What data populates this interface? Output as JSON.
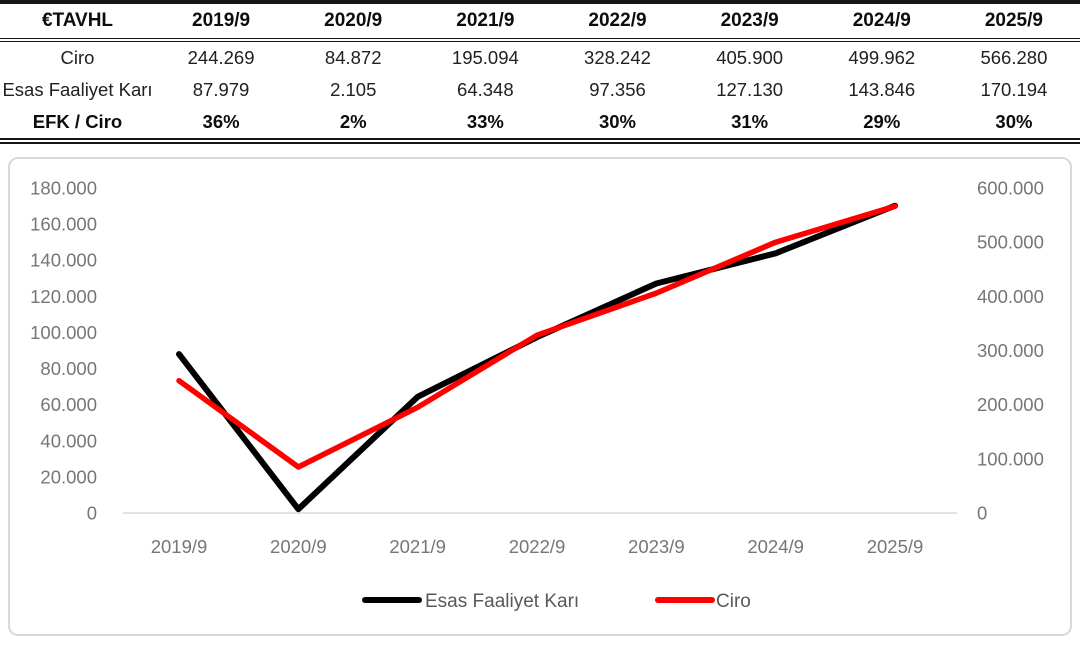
{
  "table": {
    "header": [
      "€TAVHL",
      "2019/9",
      "2020/9",
      "2021/9",
      "2022/9",
      "2023/9",
      "2024/9",
      "2025/9"
    ],
    "rows": [
      {
        "label": "Ciro",
        "values": [
          "244.269",
          "84.872",
          "195.094",
          "328.242",
          "405.900",
          "499.962",
          "566.280"
        ],
        "bold": false
      },
      {
        "label": "Esas Faaliyet Karı",
        "values": [
          "87.979",
          "2.105",
          "64.348",
          "97.356",
          "127.130",
          "143.846",
          "170.194"
        ],
        "bold": false
      },
      {
        "label": "EFK / Ciro",
        "values": [
          "36%",
          "2%",
          "33%",
          "30%",
          "31%",
          "29%",
          "30%"
        ],
        "bold": true
      }
    ]
  },
  "chart_data": {
    "type": "line",
    "title": "",
    "categories": [
      "2019/9",
      "2020/9",
      "2021/9",
      "2022/9",
      "2023/9",
      "2024/9",
      "2025/9"
    ],
    "series": [
      {
        "name": "Esas Faaliyet Karı",
        "axis": "left",
        "color": "#000000",
        "values": [
          87979,
          2105,
          64348,
          97356,
          127130,
          143846,
          170194
        ]
      },
      {
        "name": "Ciro",
        "axis": "right",
        "color": "#ff0000",
        "values": [
          244269,
          84872,
          195094,
          328242,
          405900,
          499962,
          566280
        ]
      }
    ],
    "left_axis": {
      "min": 0,
      "max": 180000,
      "step": 20000
    },
    "right_axis": {
      "min": 0,
      "max": 600000,
      "step": 100000
    },
    "tick_format": "thousands-dot",
    "grid": false,
    "legend_position": "bottom",
    "colors": {
      "axis_label": "#767676",
      "legend_label": "#595959",
      "axis_line": "#d9d9d9",
      "card_border": "#d9d9d9"
    }
  }
}
